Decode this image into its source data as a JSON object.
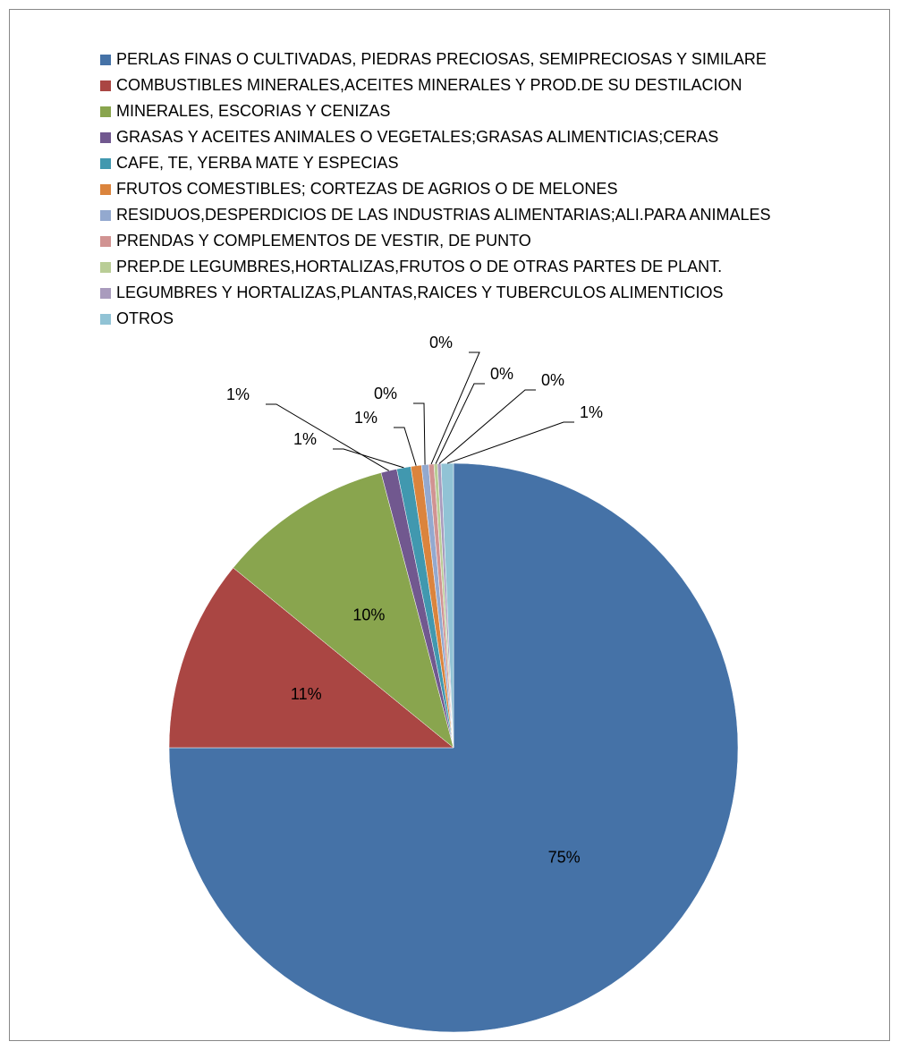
{
  "chart_data": {
    "type": "pie",
    "categories": [
      "PERLAS FINAS O CULTIVADAS, PIEDRAS PRECIOSAS, SEMIPRECIOSAS Y SIMILARE",
      "COMBUSTIBLES MINERALES,ACEITES MINERALES Y PROD.DE SU DESTILACION",
      "MINERALES, ESCORIAS Y CENIZAS",
      "GRASAS Y ACEITES ANIMALES O VEGETALES;GRASAS ALIMENTICIAS;CERAS",
      "CAFE, TE, YERBA MATE Y ESPECIAS",
      "FRUTOS COMESTIBLES; CORTEZAS DE AGRIOS O DE MELONES",
      "RESIDUOS,DESPERDICIOS DE LAS INDUSTRIAS ALIMENTARIAS;ALI.PARA ANIMALES",
      "PRENDAS Y COMPLEMENTOS DE VESTIR, DE PUNTO",
      "PREP.DE LEGUMBRES,HORTALIZAS,FRUTOS O DE OTRAS PARTES DE PLANT.",
      "LEGUMBRES Y HORTALIZAS,PLANTAS,RAICES Y TUBERCULOS ALIMENTICIOS",
      "OTROS"
    ],
    "values": [
      75,
      10.9,
      10,
      0.9,
      0.8,
      0.6,
      0.4,
      0.3,
      0.2,
      0.2,
      0.7
    ],
    "value_labels": [
      "75%",
      "11%",
      "10%",
      "1%",
      "1%",
      "1%",
      "0%",
      "0%",
      "0%",
      "0%",
      "1%"
    ],
    "colors": [
      "#4572a7",
      "#aa4643",
      "#89a54e",
      "#71588f",
      "#4198af",
      "#db843d",
      "#93a9cf",
      "#d19392",
      "#b9cd96",
      "#a99bbd",
      "#91c3d5"
    ],
    "legend": "top"
  }
}
